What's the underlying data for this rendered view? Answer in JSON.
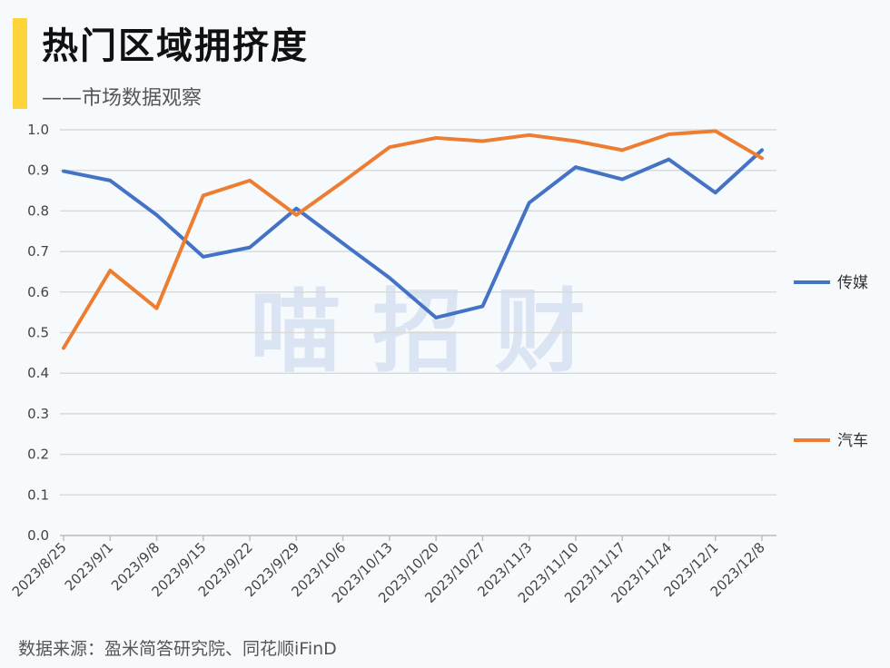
{
  "header": {
    "title": "热门区域拥挤度",
    "subtitle": "——市场数据观察"
  },
  "watermark": "喵 招 财",
  "footer": {
    "source": "数据来源：盈米简答研究院、同花顺iFinD"
  },
  "colors": {
    "accent": "#ffd43a",
    "series_media": "#4472c4",
    "series_auto": "#ed7d31",
    "grid": "#d9d9d9"
  },
  "chart_data": {
    "type": "line",
    "title": "",
    "xlabel": "",
    "ylabel": "",
    "ylim": [
      0,
      1.0
    ],
    "yticks": [
      "0.0",
      "0.1",
      "0.2",
      "0.3",
      "0.4",
      "0.5",
      "0.6",
      "0.7",
      "0.8",
      "0.9",
      "1.0"
    ],
    "grid": true,
    "legend_position": "right",
    "categories": [
      "2023/8/25",
      "2023/9/1",
      "2023/9/8",
      "2023/9/15",
      "2023/9/22",
      "2023/9/29",
      "2023/10/6",
      "2023/10/13",
      "2023/10/20",
      "2023/10/27",
      "2023/11/3",
      "2023/11/10",
      "2023/11/17",
      "2023/11/24",
      "2023/12/1",
      "2023/12/8"
    ],
    "series": [
      {
        "name": "传媒",
        "color": "#4472c4",
        "values": [
          0.898,
          0.875,
          0.79,
          0.687,
          0.71,
          0.806,
          0.72,
          0.635,
          0.537,
          0.565,
          0.82,
          0.908,
          0.878,
          0.927,
          0.845,
          0.95
        ]
      },
      {
        "name": "汽车",
        "color": "#ed7d31",
        "values": [
          0.462,
          0.653,
          0.56,
          0.838,
          0.875,
          0.79,
          0.872,
          0.957,
          0.98,
          0.972,
          0.987,
          0.972,
          0.95,
          0.989,
          0.997,
          0.93
        ]
      }
    ]
  }
}
